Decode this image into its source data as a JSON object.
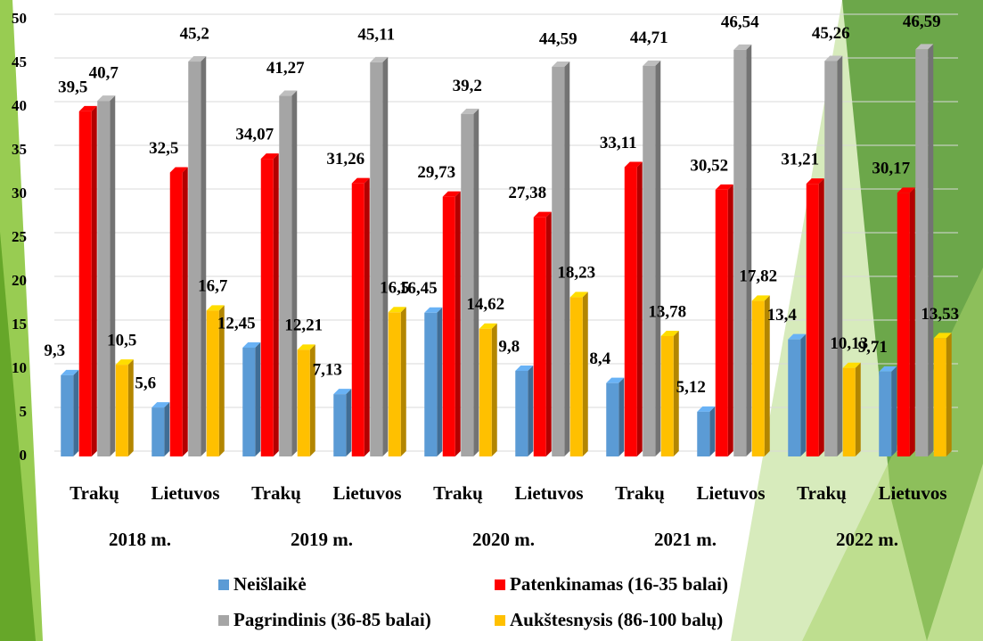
{
  "chart_data": {
    "type": "bar",
    "categories": [
      "Trakų",
      "Lietuvos",
      "Trakų",
      "Lietuvos",
      "Trakų",
      "Lietuvos",
      "Trakų",
      "Lietuvos",
      "Trakų",
      "Lietuvos"
    ],
    "groups": [
      "2018 m.",
      "2019 m.",
      "2020 m.",
      "2021 m.",
      "2022 m."
    ],
    "series": [
      {
        "name": "Neišlaikė",
        "color": "#5b9bd5",
        "values": [
          9.3,
          5.6,
          12.45,
          7.13,
          16.45,
          9.8,
          8.4,
          5.12,
          13.4,
          9.71
        ],
        "value_labels": [
          "9,3",
          "5,6",
          "12,45",
          "7,13",
          "16,45",
          "9,8",
          "8,4",
          "5,12",
          "13,4",
          "9,71"
        ]
      },
      {
        "name": "Patenkinamas (16-35 balai)",
        "color": "#ff0000",
        "values": [
          39.5,
          32.5,
          34.07,
          31.26,
          29.73,
          27.38,
          33.11,
          30.52,
          31.21,
          30.17
        ],
        "value_labels": [
          "39,5",
          "32,5",
          "34,07",
          "31,26",
          "29,73",
          "27,38",
          "33,11",
          "30,52",
          "31,21",
          "30,17"
        ]
      },
      {
        "name": "Pagrindinis (36-85 balai)",
        "color": "#a5a5a5",
        "values": [
          40.7,
          45.2,
          41.27,
          45.11,
          39.2,
          44.59,
          44.71,
          46.54,
          45.26,
          46.59
        ],
        "value_labels": [
          "40,7",
          "45,2",
          "41,27",
          "45,11",
          "39,2",
          "44,59",
          "44,71",
          "46,54",
          "45,26",
          "46,59"
        ]
      },
      {
        "name": "Aukštesnysis (86-100 balų)",
        "color": "#ffc000",
        "values": [
          10.5,
          16.7,
          12.21,
          16.5,
          14.62,
          18.23,
          13.78,
          17.82,
          10.13,
          13.53
        ],
        "value_labels": [
          "10,5",
          "16,7",
          "12,21",
          "16,5",
          "14,62",
          "18,23",
          "13,78",
          "17,82",
          "10,13",
          "13,53"
        ]
      }
    ],
    "ylim": [
      0,
      50
    ],
    "yticks": [
      0,
      5,
      10,
      15,
      20,
      25,
      30,
      35,
      40,
      45,
      50
    ],
    "grid": true
  }
}
